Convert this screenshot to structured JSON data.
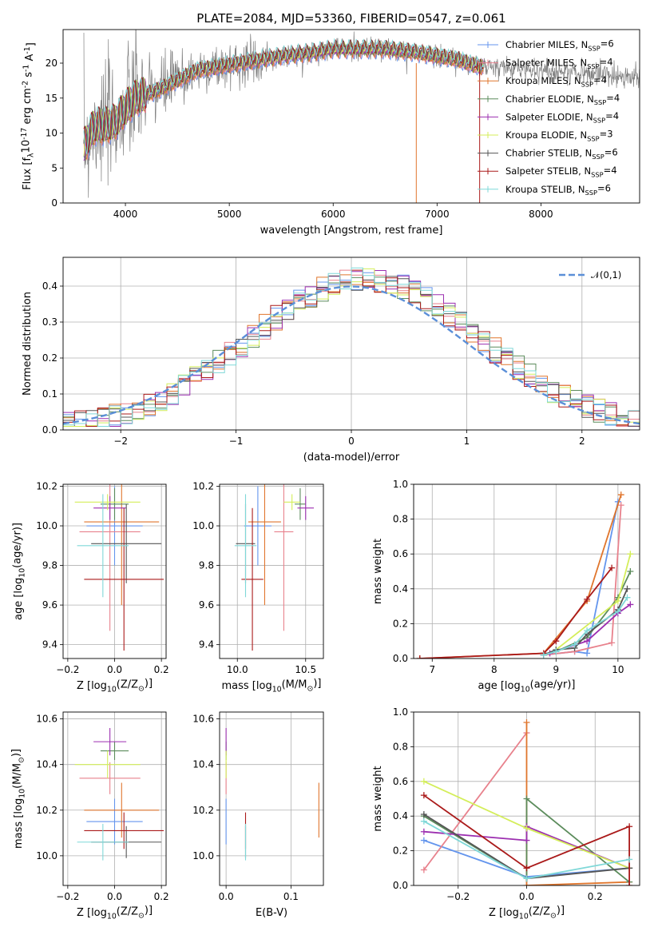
{
  "figure": {
    "title": "PLATE=2084, MJD=53360, FIBERID=0547, z=0.061"
  },
  "models": [
    {
      "name": "Chabrier MILES, N$_{SSP}$=6",
      "color": "#6495ed"
    },
    {
      "name": "Salpeter MILES, N$_{SSP}$=4",
      "color": "#e8818c"
    },
    {
      "name": "Kroupa MILES, N$_{SSP}$=4",
      "color": "#e0762d"
    },
    {
      "name": "Chabrier ELODIE, N$_{SSP}$=4",
      "color": "#5c8c5c"
    },
    {
      "name": "Salpeter ELODIE, N$_{SSP}$=4",
      "color": "#9c2fb0"
    },
    {
      "name": "Kroupa ELODIE, N$_{SSP}$=3",
      "color": "#d4ee5a"
    },
    {
      "name": "Chabrier STELIB, N$_{SSP}$=6",
      "color": "#555555"
    },
    {
      "name": "Salpeter STELIB, N$_{SSP}$=4",
      "color": "#aa1a1a"
    },
    {
      "name": "Kroupa STELIB, N$_{SSP}$=6",
      "color": "#7fd8d8"
    }
  ],
  "chart_data": [
    {
      "id": "spectrum",
      "type": "line",
      "title": "PLATE=2084, MJD=53360, FIBERID=0547, z=0.061",
      "xlabel": "wavelength [Angstrom, rest frame]",
      "ylabel": "Flux [f$_\\lambda$10$^{-17}$ erg cm$^{-2}$ s$^{-1}$ A$^{-1}$]",
      "xlim": [
        3400,
        8950
      ],
      "ylim": [
        0,
        24.8
      ],
      "xticks": [
        4000,
        5000,
        6000,
        7000,
        8000
      ],
      "yticks": [
        0,
        5,
        10,
        15,
        20
      ],
      "grid": false,
      "legend": "right",
      "data_color": "#808080",
      "continuum": {
        "x": [
          3600,
          3700,
          3800,
          3900,
          4000,
          4100,
          4200,
          4300,
          4500,
          4700,
          4900,
          5100,
          5300,
          5500,
          5800,
          6000,
          6200,
          6500,
          6800,
          7000,
          7200,
          7400
        ],
        "y": [
          8,
          11,
          11,
          11.5,
          13.5,
          15,
          15.5,
          16,
          17.5,
          19,
          19.5,
          20,
          20.5,
          21,
          21.5,
          22,
          22,
          22,
          21.5,
          21,
          20.5,
          19.5
        ]
      }
    },
    {
      "id": "residuals",
      "type": "line",
      "xlabel": "(data-model)/error",
      "ylabel": "Normed distribution",
      "xlim": [
        -2.5,
        2.5
      ],
      "ylim": [
        0,
        0.48
      ],
      "xticks": [
        -2,
        -1,
        0,
        1,
        2
      ],
      "yticks": [
        0.0,
        0.1,
        0.2,
        0.3,
        0.4
      ],
      "grid": true,
      "legend": "top-right",
      "normal_label": "$\\mathcal{N}(0,1)$",
      "normal_color": "#5b8fd8"
    },
    {
      "id": "age-vs-Z",
      "type": "scatter",
      "xlabel": "Z [log$_{10}$($Z/Z_\\odot$)]",
      "ylabel": "age  [log$_{10}$($age/yr$)]",
      "xlim": [
        -0.22,
        0.22
      ],
      "ylim": [
        9.33,
        10.21
      ],
      "xticks": [
        -0.2,
        0.0,
        0.2
      ],
      "yticks": [
        9.4,
        9.6,
        9.8,
        10.0,
        10.2
      ],
      "grid": true,
      "series": [
        {
          "model": 0,
          "x": 0.0,
          "xerr": 0.12,
          "y": 10.0,
          "yerr": 0.2
        },
        {
          "model": 1,
          "x": -0.02,
          "xerr": 0.13,
          "y": 9.97,
          "yerr": 0.5
        },
        {
          "model": 2,
          "x": 0.03,
          "xerr": 0.16,
          "y": 10.02,
          "yerr": 0.42
        },
        {
          "model": 3,
          "x": 0.0,
          "xerr": 0.06,
          "y": 10.11,
          "yerr": 0.08
        },
        {
          "model": 4,
          "x": -0.02,
          "xerr": 0.07,
          "y": 10.09,
          "yerr": 0.06
        },
        {
          "model": 5,
          "x": -0.03,
          "xerr": 0.14,
          "y": 10.12,
          "yerr": 0.04
        },
        {
          "model": 6,
          "x": 0.05,
          "xerr": 0.15,
          "y": 9.91,
          "yerr": 0.2
        },
        {
          "model": 7,
          "x": 0.04,
          "xerr": 0.17,
          "y": 9.73,
          "yerr": 0.36
        },
        {
          "model": 8,
          "x": -0.05,
          "xerr": 0.11,
          "y": 9.9,
          "yerr": 0.26
        }
      ]
    },
    {
      "id": "age-vs-mass",
      "type": "scatter",
      "xlabel": "mass [log$_{10}$($M/M_\\odot$)]",
      "ylabel": "",
      "xlim": [
        9.87,
        10.63
      ],
      "ylim": [
        9.33,
        10.21
      ],
      "xticks": [
        10.0,
        10.5
      ],
      "yticks": [
        9.4,
        9.6,
        9.8,
        10.0,
        10.2
      ],
      "grid": true,
      "series": [
        {
          "model": 0,
          "x": 10.15,
          "xerr": 0.1,
          "y": 10.0,
          "yerr": 0.2
        },
        {
          "model": 1,
          "x": 10.34,
          "xerr": 0.07,
          "y": 9.97,
          "yerr": 0.5
        },
        {
          "model": 2,
          "x": 10.2,
          "xerr": 0.12,
          "y": 10.02,
          "yerr": 0.42
        },
        {
          "model": 3,
          "x": 10.46,
          "xerr": 0.04,
          "y": 10.11,
          "yerr": 0.08
        },
        {
          "model": 4,
          "x": 10.5,
          "xerr": 0.06,
          "y": 10.09,
          "yerr": 0.06
        },
        {
          "model": 5,
          "x": 10.4,
          "xerr": 0.06,
          "y": 10.12,
          "yerr": 0.04
        },
        {
          "model": 6,
          "x": 10.06,
          "xerr": 0.07,
          "y": 9.91,
          "yerr": 0.2
        },
        {
          "model": 7,
          "x": 10.11,
          "xerr": 0.08,
          "y": 9.73,
          "yerr": 0.36
        },
        {
          "model": 8,
          "x": 10.06,
          "xerr": 0.08,
          "y": 9.9,
          "yerr": 0.26
        }
      ]
    },
    {
      "id": "weight-vs-age",
      "type": "line",
      "xlabel": "age  [log$_{10}$($age/yr$)]",
      "ylabel": "mass weight",
      "xlim": [
        6.7,
        10.35
      ],
      "ylim": [
        0,
        1.0
      ],
      "xticks": [
        7,
        8,
        9,
        10
      ],
      "yticks": [
        0.0,
        0.2,
        0.4,
        0.6,
        0.8,
        1.0
      ],
      "grid": true,
      "series": [
        {
          "model": 0,
          "x": [
            8.8,
            9.3,
            9.5,
            10.0
          ],
          "y": [
            0.02,
            0.04,
            0.03,
            0.9
          ]
        },
        {
          "model": 1,
          "x": [
            8.8,
            9.3,
            9.9,
            10.05
          ],
          "y": [
            0.02,
            0.04,
            0.09,
            0.88
          ]
        },
        {
          "model": 2,
          "x": [
            6.8,
            8.8,
            9.5,
            10.05
          ],
          "y": [
            0.0,
            0.03,
            0.33,
            0.94
          ]
        },
        {
          "model": 3,
          "x": [
            9.0,
            9.5,
            10.0,
            10.2
          ],
          "y": [
            0.04,
            0.12,
            0.35,
            0.5
          ]
        },
        {
          "model": 4,
          "x": [
            8.9,
            9.5,
            10.0,
            10.2
          ],
          "y": [
            0.03,
            0.1,
            0.26,
            0.31
          ]
        },
        {
          "model": 5,
          "x": [
            9.0,
            10.0,
            10.2
          ],
          "y": [
            0.05,
            0.33,
            0.6
          ]
        },
        {
          "model": 6,
          "x": [
            8.8,
            9.0,
            9.3,
            9.5,
            10.0,
            10.15
          ],
          "y": [
            0.02,
            0.05,
            0.06,
            0.14,
            0.28,
            0.4
          ]
        },
        {
          "model": 7,
          "x": [
            6.8,
            8.8,
            9.0,
            9.5,
            9.9
          ],
          "y": [
            0.0,
            0.03,
            0.1,
            0.34,
            0.52
          ]
        },
        {
          "model": 8,
          "x": [
            8.8,
            9.0,
            9.3,
            9.5,
            10.0,
            10.15
          ],
          "y": [
            0.02,
            0.04,
            0.08,
            0.16,
            0.27,
            0.35
          ]
        }
      ]
    },
    {
      "id": "mass-vs-Z",
      "type": "scatter",
      "xlabel": "Z [log$_{10}$($Z/Z_\\odot$)]",
      "ylabel": "mass [log$_{10}$($M/M_\\odot$)]",
      "xlim": [
        -0.22,
        0.22
      ],
      "ylim": [
        9.87,
        10.63
      ],
      "xticks": [
        -0.2,
        0.0,
        0.2
      ],
      "yticks": [
        10.0,
        10.2,
        10.4,
        10.6
      ],
      "grid": true,
      "series": [
        {
          "model": 0,
          "x": 0.0,
          "xerr": 0.12,
          "y": 10.15,
          "yerr": 0.1
        },
        {
          "model": 1,
          "x": -0.02,
          "xerr": 0.13,
          "y": 10.34,
          "yerr": 0.07
        },
        {
          "model": 2,
          "x": 0.03,
          "xerr": 0.16,
          "y": 10.2,
          "yerr": 0.12
        },
        {
          "model": 3,
          "x": 0.0,
          "xerr": 0.06,
          "y": 10.46,
          "yerr": 0.04
        },
        {
          "model": 4,
          "x": -0.02,
          "xerr": 0.07,
          "y": 10.5,
          "yerr": 0.06
        },
        {
          "model": 5,
          "x": -0.03,
          "xerr": 0.14,
          "y": 10.4,
          "yerr": 0.06
        },
        {
          "model": 6,
          "x": 0.05,
          "xerr": 0.15,
          "y": 10.06,
          "yerr": 0.07
        },
        {
          "model": 7,
          "x": 0.04,
          "xerr": 0.17,
          "y": 10.11,
          "yerr": 0.08
        },
        {
          "model": 8,
          "x": -0.05,
          "xerr": 0.11,
          "y": 10.06,
          "yerr": 0.08
        }
      ]
    },
    {
      "id": "mass-vs-EBV",
      "type": "scatter",
      "xlabel": "E(B-V)",
      "ylabel": "",
      "xlim": [
        -0.01,
        0.15
      ],
      "ylim": [
        9.87,
        10.63
      ],
      "xticks": [
        0.0,
        0.1
      ],
      "yticks": [
        10.0,
        10.2,
        10.4,
        10.6
      ],
      "grid": true,
      "series": [
        {
          "model": 0,
          "x": 0.0,
          "y": 10.15,
          "yerr": 0.1
        },
        {
          "model": 1,
          "x": 0.0,
          "y": 10.34,
          "yerr": 0.07
        },
        {
          "model": 2,
          "x": 0.143,
          "y": 10.2,
          "yerr": 0.12
        },
        {
          "model": 3,
          "x": 0.0,
          "y": 10.46,
          "yerr": 0.04
        },
        {
          "model": 4,
          "x": 0.0,
          "y": 10.5,
          "yerr": 0.06
        },
        {
          "model": 5,
          "x": 0.0,
          "y": 10.4,
          "yerr": 0.06
        },
        {
          "model": 6,
          "x": 0.03,
          "y": 10.06,
          "yerr": 0.07
        },
        {
          "model": 7,
          "x": 0.03,
          "y": 10.11,
          "yerr": 0.08
        },
        {
          "model": 8,
          "x": 0.03,
          "y": 10.06,
          "yerr": 0.08
        }
      ]
    },
    {
      "id": "weight-vs-Z",
      "type": "line",
      "xlabel": "Z [log$_{10}$($Z/Z_\\odot$)]",
      "ylabel": "mass weight",
      "xlim": [
        -0.33,
        0.33
      ],
      "ylim": [
        0,
        1.0
      ],
      "xticks": [
        -0.2,
        0.0,
        0.2
      ],
      "yticks": [
        0.0,
        0.2,
        0.4,
        0.6,
        0.8,
        1.0
      ],
      "grid": true,
      "series": [
        {
          "model": 0,
          "x": [
            -0.3,
            0.0,
            0.3
          ],
          "y": [
            0.26,
            0.05,
            0.1
          ]
        },
        {
          "model": 1,
          "x": [
            -0.3,
            0.0
          ],
          "y": [
            0.09,
            0.88
          ]
        },
        {
          "model": 2,
          "x": [
            0.0,
            0.0,
            0.3
          ],
          "y": [
            0.94,
            0.0,
            0.02
          ]
        },
        {
          "model": 3,
          "x": [
            -0.3,
            0.0,
            0.0,
            0.3
          ],
          "y": [
            0.4,
            0.04,
            0.5,
            0.02
          ]
        },
        {
          "model": 4,
          "x": [
            -0.3,
            0.0,
            0.0,
            0.3
          ],
          "y": [
            0.31,
            0.26,
            0.34,
            0.1
          ]
        },
        {
          "model": 5,
          "x": [
            -0.3,
            0.0,
            0.3
          ],
          "y": [
            0.6,
            0.33,
            0.1
          ]
        },
        {
          "model": 6,
          "x": [
            -0.3,
            0.0,
            0.3
          ],
          "y": [
            0.41,
            0.04,
            0.1
          ]
        },
        {
          "model": 7,
          "x": [
            -0.3,
            0.0,
            0.3,
            0.3
          ],
          "y": [
            0.52,
            0.1,
            0.34,
            0.0
          ]
        },
        {
          "model": 8,
          "x": [
            -0.3,
            0.0,
            0.3
          ],
          "y": [
            0.37,
            0.04,
            0.15
          ]
        }
      ]
    }
  ]
}
